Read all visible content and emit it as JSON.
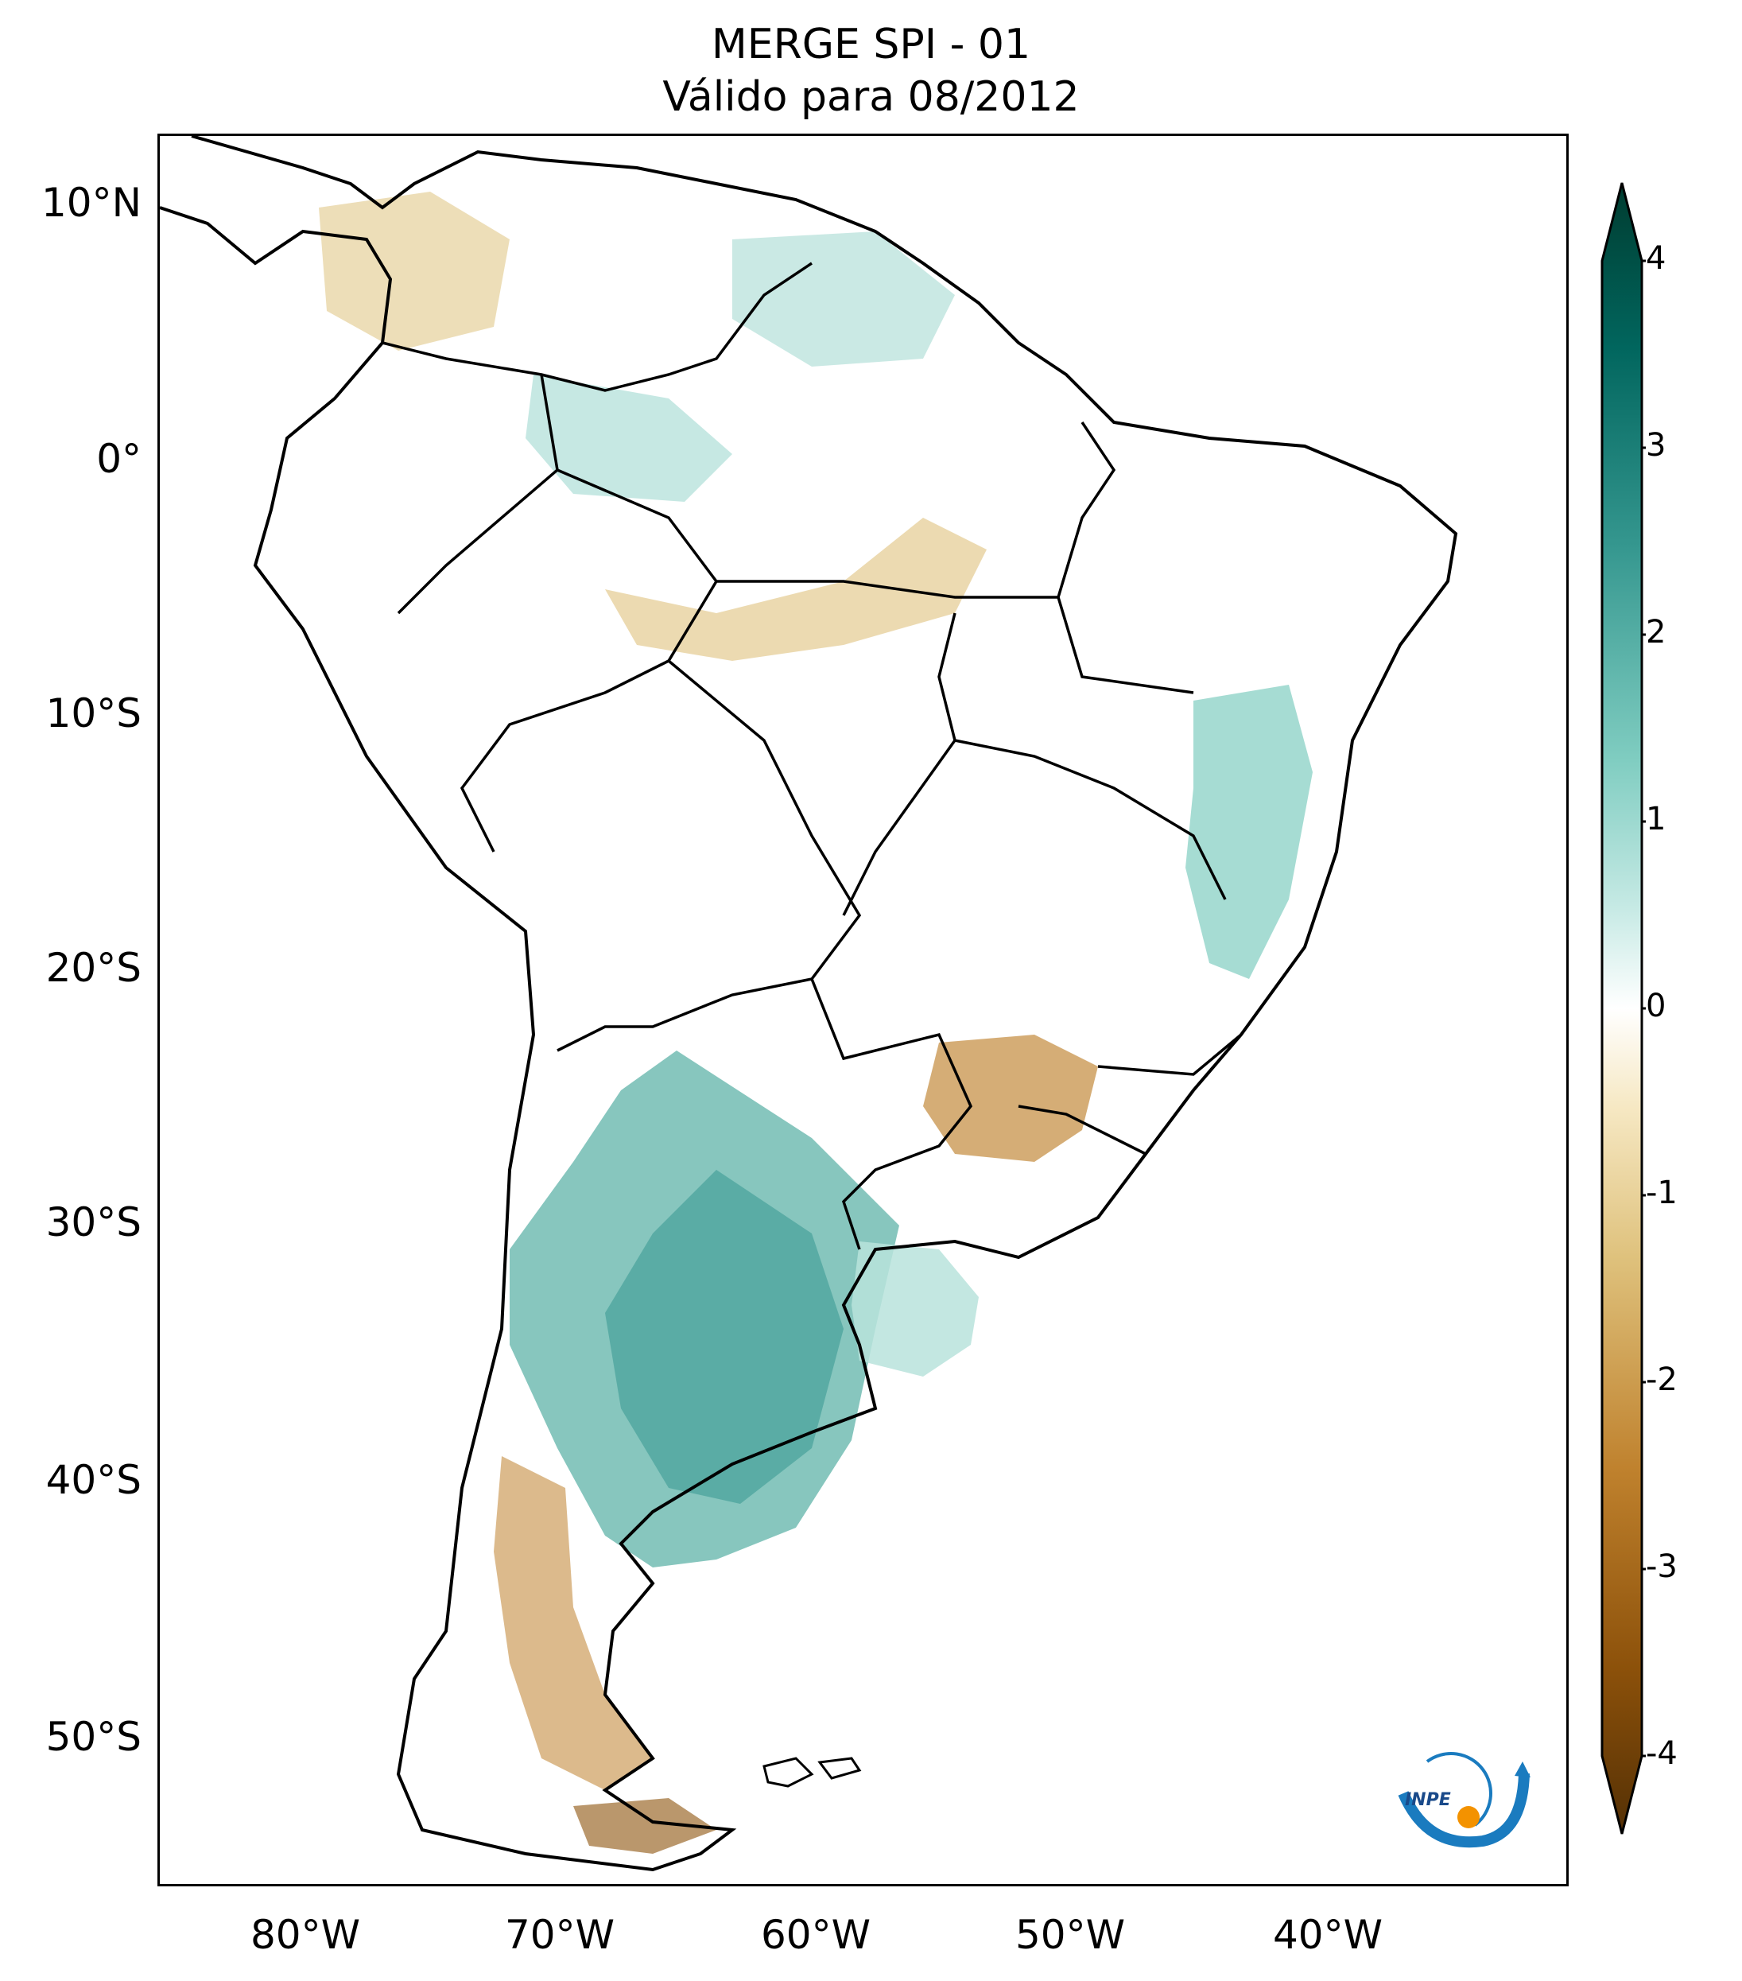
{
  "title": {
    "line1": "MERGE   SPI - 01",
    "line2": "Válido para 08/2012"
  },
  "map": {
    "extent": {
      "lon_min": -85,
      "lon_max": -30,
      "lat_min": -56,
      "lat_max": 13
    },
    "lat_ticks": [
      {
        "value": 10,
        "label": "10°N"
      },
      {
        "value": 0,
        "label": "0°"
      },
      {
        "value": -10,
        "label": "10°S"
      },
      {
        "value": -20,
        "label": "20°S"
      },
      {
        "value": -30,
        "label": "30°S"
      },
      {
        "value": -40,
        "label": "40°S"
      },
      {
        "value": -50,
        "label": "50°S"
      }
    ],
    "lon_ticks": [
      {
        "value": -80,
        "label": "80°W"
      },
      {
        "value": -70,
        "label": "70°W"
      },
      {
        "value": -60,
        "label": "60°W"
      },
      {
        "value": -50,
        "label": "50°W"
      },
      {
        "value": -40,
        "label": "40°W"
      }
    ]
  },
  "colorbar": {
    "min": -4,
    "max": 4,
    "ticks": [
      "4",
      "3",
      "2",
      "1",
      "0",
      "-1",
      "-2",
      "-3",
      "-4"
    ],
    "colors": {
      "dry_extreme": "#543005",
      "dry_strong": "#8c510a",
      "dry_moderate": "#bf812d",
      "dry_mild": "#dfc27d",
      "dry_light": "#f6e8c3",
      "neutral": "#ffffff",
      "wet_light": "#c7eae5",
      "wet_mild": "#80cdc1",
      "wet_moderate": "#35978f",
      "wet_strong": "#01665e",
      "wet_extreme": "#003c30"
    }
  },
  "logo": {
    "text": "INPE",
    "arrow_color": "#1a7bbf",
    "dot_color": "#f39200"
  }
}
